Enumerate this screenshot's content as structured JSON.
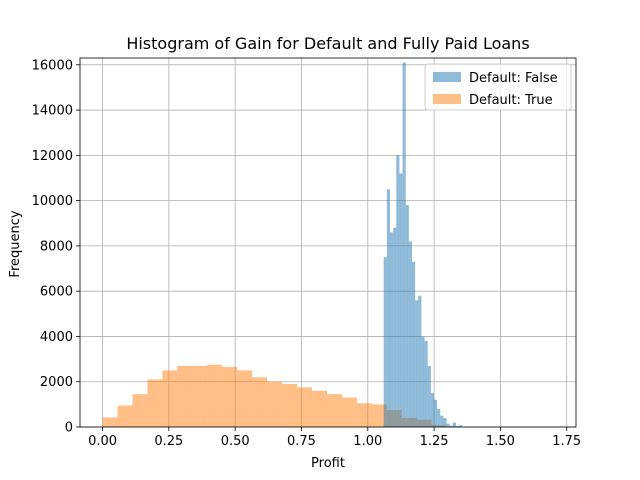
{
  "chart_data": {
    "type": "bar",
    "title": "Histogram of Gain for Default and Fully Paid Loans",
    "xlabel": "Profit",
    "ylabel": "Frequency",
    "xlim": [
      -0.085,
      1.785
    ],
    "ylim": [
      0,
      16300
    ],
    "xticks": [
      {
        "value": 0.0,
        "label": "0.00"
      },
      {
        "value": 0.25,
        "label": "0.25"
      },
      {
        "value": 0.5,
        "label": "0.50"
      },
      {
        "value": 0.75,
        "label": "0.75"
      },
      {
        "value": 1.0,
        "label": "1.00"
      },
      {
        "value": 1.25,
        "label": "1.25"
      },
      {
        "value": 1.5,
        "label": "1.50"
      },
      {
        "value": 1.75,
        "label": "1.75"
      }
    ],
    "yticks": [
      {
        "value": 0,
        "label": "0"
      },
      {
        "value": 2000,
        "label": "2000"
      },
      {
        "value": 4000,
        "label": "4000"
      },
      {
        "value": 6000,
        "label": "6000"
      },
      {
        "value": 8000,
        "label": "8000"
      },
      {
        "value": 10000,
        "label": "10000"
      },
      {
        "value": 12000,
        "label": "12000"
      },
      {
        "value": 14000,
        "label": "14000"
      },
      {
        "value": 16000,
        "label": "16000"
      }
    ],
    "grid": true,
    "legend_position": "top-right",
    "series": [
      {
        "name": "Default: True",
        "color": "#ff7f0e",
        "opacity": 0.5,
        "bin_start": 0.0,
        "bin_width": 0.05641,
        "values": [
          420,
          950,
          1450,
          2100,
          2500,
          2700,
          2700,
          2750,
          2650,
          2500,
          2200,
          2000,
          1900,
          1750,
          1600,
          1450,
          1300,
          1050,
          1000,
          750,
          400,
          320,
          80,
          20,
          0,
          0,
          0,
          0,
          0,
          0
        ]
      },
      {
        "name": "Default: False",
        "color": "#1f77b4",
        "opacity": 0.5,
        "bin_start": 1.06,
        "bin_width": 0.01185,
        "values": [
          7500,
          10500,
          8600,
          8800,
          12000,
          11200,
          16100,
          9800,
          8200,
          7300,
          5600,
          5800,
          4000,
          3800,
          2700,
          1500,
          1200,
          800,
          500,
          400,
          150,
          60,
          200,
          50,
          80,
          0,
          0,
          0,
          0,
          0
        ]
      }
    ]
  }
}
